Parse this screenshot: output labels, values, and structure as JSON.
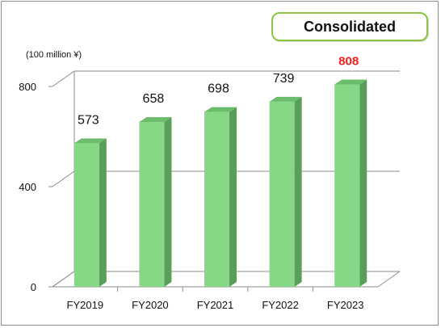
{
  "badge": {
    "label": "Consolidated"
  },
  "unit_label": "(100 million ¥)",
  "colors": {
    "bar_front": "#86d886",
    "bar_side": "#5b9d5b",
    "bar_top": "#6bbd6b",
    "label_normal": "#111111",
    "label_highlight": "#ff1a1a",
    "badge_border": "#8cc63f"
  },
  "chart_data": {
    "type": "bar",
    "categories": [
      "FY2019",
      "FY2020",
      "FY2021",
      "FY2022",
      "FY2023"
    ],
    "values": [
      573,
      658,
      698,
      739,
      808
    ],
    "value_labels": [
      "573",
      "658",
      "698",
      "739",
      "808"
    ],
    "highlight_index": 4,
    "y_ticks": [
      {
        "value": 0,
        "label": "0"
      },
      {
        "value": 400,
        "label": "400"
      },
      {
        "value": 800,
        "label": "800"
      }
    ],
    "ylim": [
      0,
      800
    ],
    "grid": true,
    "legend": "none",
    "title": "",
    "xlabel": "",
    "ylabel": ""
  }
}
